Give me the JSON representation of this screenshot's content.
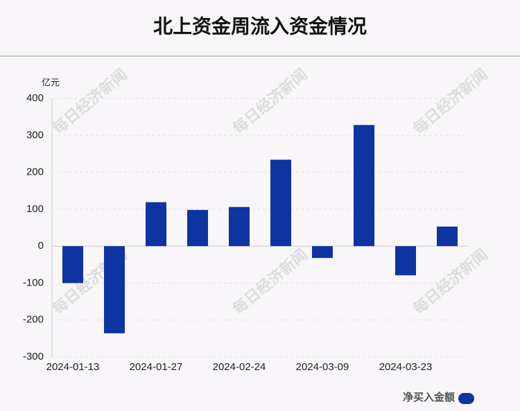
{
  "chart_data": {
    "type": "bar",
    "title": "北上资金周流入资金情况",
    "y_unit": "亿元",
    "watermark": "每日经济新闻",
    "categories": [
      "2024-01-13",
      null,
      "2024-01-27",
      null,
      "2024-02-24",
      null,
      "2024-03-09",
      null,
      "2024-03-23",
      null
    ],
    "series": [
      {
        "name": "净买入金额",
        "color": "#0d34a0",
        "values": [
          -100,
          -236,
          119,
          98,
          106,
          234,
          -32,
          328,
          -79,
          53
        ]
      }
    ],
    "ylim": [
      -300,
      400
    ],
    "yticks": [
      -300,
      -200,
      -100,
      0,
      100,
      200,
      300,
      400
    ],
    "grid": true,
    "legend": "bottom-right"
  }
}
